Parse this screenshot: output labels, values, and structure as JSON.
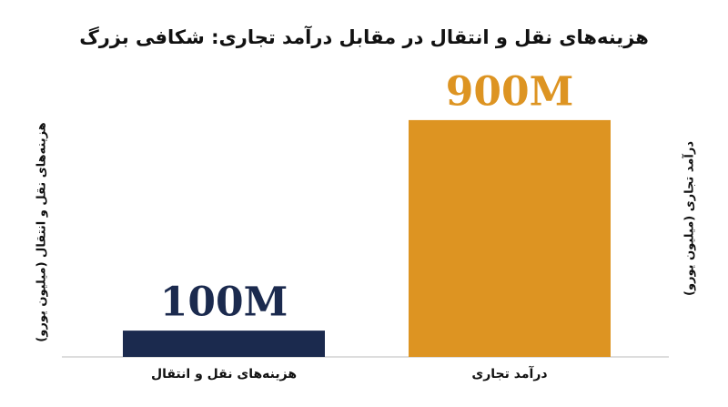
{
  "chart_data": {
    "type": "bar",
    "title": "هزینه‌های نقل و انتقال در مقابل درآمد تجاری: شکافی بزرگ",
    "categories": [
      "هزینه‌های نقل و انتقال",
      "درآمد تجاری"
    ],
    "values": [
      100,
      900
    ],
    "value_labels": [
      "100M",
      "900M"
    ],
    "colors": [
      "#1b2a4e",
      "#dd9422"
    ],
    "ylabel": "هزینه‌های نقل و انتقال (میلیون یورو)",
    "y2label": "درآمد تجاری (میلیون یورو)",
    "ylim": [
      0,
      1000
    ]
  }
}
